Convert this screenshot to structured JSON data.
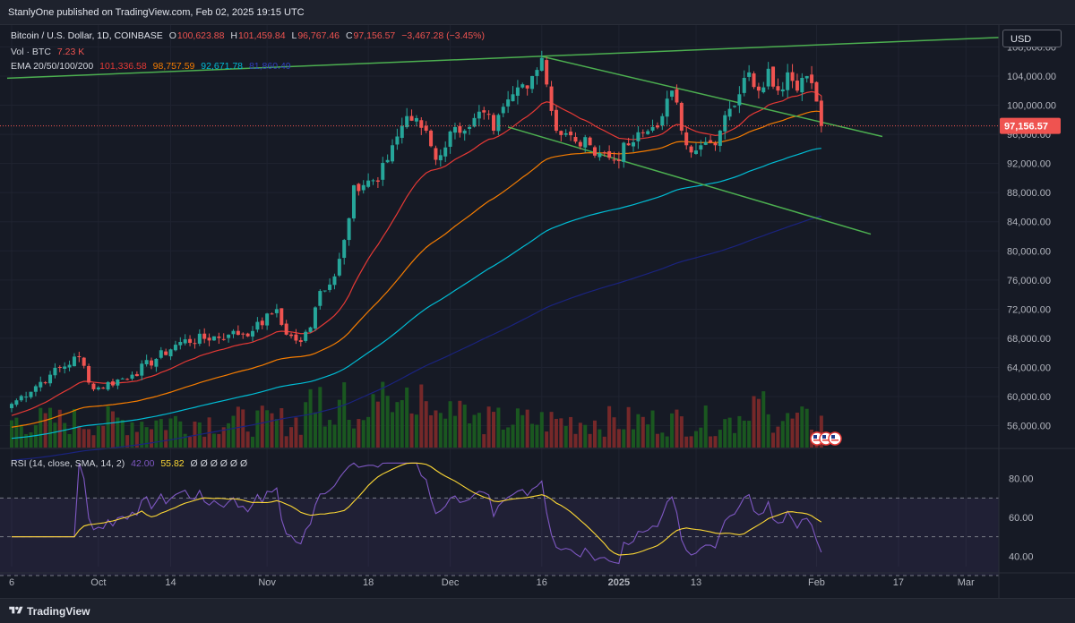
{
  "header": {
    "published": "StanlyOne published on TradingView.com, Feb 02, 2025 19:15 UTC"
  },
  "legend": {
    "symbol": "Bitcoin / U.S. Dollar, 1D, COINBASE",
    "o_label": "O",
    "o_value": "100,623.88",
    "h_label": "H",
    "h_value": "101,459.84",
    "l_label": "L",
    "l_value": "96,767.46",
    "c_label": "C",
    "c_value": "97,156.57",
    "change": "−3,467.28 (−3.45%)",
    "vol_label": "Vol · BTC",
    "vol_value": "7.23 K",
    "ema_label": "EMA 20/50/100/200",
    "ema20": "101,336.58",
    "ema50": "98,757.59",
    "ema100": "92,671.78",
    "ema200": "81,860.49",
    "rsi_label": "RSI (14, close, SMA, 14, 2)",
    "rsi_value": "42.00",
    "rsi_sma": "55.82",
    "rsi_extra": "Ø Ø Ø Ø Ø Ø"
  },
  "currency_button": "USD",
  "price_label": "97,156.57",
  "footer": {
    "brand": "TradingView"
  },
  "colors": {
    "up": "#26a69a",
    "down": "#ef5350",
    "ema20": "#e53935",
    "ema50": "#f57c00",
    "ema100": "#00bcd4",
    "ema200": "#1a237e",
    "trend": "#4caf50",
    "rsi": "#7e57c2",
    "rsi_sma": "#fdd835"
  },
  "chart_data": {
    "type": "candlestick",
    "symbol": "BTC/USD",
    "timeframe": "1D",
    "y_ticks": [
      "108,000.00",
      "104,000.00",
      "100,000.00",
      "96,000.00",
      "92,000.00",
      "88,000.00",
      "84,000.00",
      "80,000.00",
      "76,000.00",
      "72,000.00",
      "68,000.00",
      "64,000.00",
      "60,000.00",
      "56,000.00"
    ],
    "y_values": [
      108000,
      104000,
      100000,
      96000,
      92000,
      88000,
      84000,
      80000,
      76000,
      72000,
      68000,
      64000,
      60000,
      56000
    ],
    "x_ticks": [
      "6",
      "Oct",
      "14",
      "Nov",
      "18",
      "Dec",
      "16",
      "2025",
      "13",
      "Feb",
      "17",
      "Mar"
    ],
    "ylim": [
      53000,
      111000
    ],
    "last_price": 97156.57,
    "anchors": [
      {
        "d": 0,
        "p": 59000
      },
      {
        "d": 8,
        "p": 63000
      },
      {
        "d": 14,
        "p": 65500
      },
      {
        "d": 17,
        "p": 61000
      },
      {
        "d": 25,
        "p": 63000
      },
      {
        "d": 35,
        "p": 67500
      },
      {
        "d": 45,
        "p": 68500
      },
      {
        "d": 50,
        "p": 69000
      },
      {
        "d": 55,
        "p": 72000
      },
      {
        "d": 57,
        "p": 68500
      },
      {
        "d": 60,
        "p": 67500
      },
      {
        "d": 62,
        "p": 69500
      },
      {
        "d": 64,
        "p": 74500
      },
      {
        "d": 67,
        "p": 76500
      },
      {
        "d": 69,
        "p": 81500
      },
      {
        "d": 71,
        "p": 89000
      },
      {
        "d": 76,
        "p": 89500
      },
      {
        "d": 79,
        "p": 94500
      },
      {
        "d": 82,
        "p": 98500
      },
      {
        "d": 86,
        "p": 96500
      },
      {
        "d": 88,
        "p": 92500
      },
      {
        "d": 92,
        "p": 97000
      },
      {
        "d": 95,
        "p": 97000
      },
      {
        "d": 98,
        "p": 99000
      },
      {
        "d": 100,
        "p": 96500
      },
      {
        "d": 104,
        "p": 101500
      },
      {
        "d": 108,
        "p": 104000
      },
      {
        "d": 110,
        "p": 106500
      },
      {
        "d": 113,
        "p": 96500
      },
      {
        "d": 117,
        "p": 95000
      },
      {
        "d": 120,
        "p": 94500
      },
      {
        "d": 125,
        "p": 92500
      },
      {
        "d": 128,
        "p": 94500
      },
      {
        "d": 133,
        "p": 97000
      },
      {
        "d": 135,
        "p": 98500
      },
      {
        "d": 137,
        "p": 102000
      },
      {
        "d": 140,
        "p": 94500
      },
      {
        "d": 143,
        "p": 94500
      },
      {
        "d": 146,
        "p": 94500
      },
      {
        "d": 149,
        "p": 99500
      },
      {
        "d": 151,
        "p": 101500
      },
      {
        "d": 153,
        "p": 104500
      },
      {
        "d": 155,
        "p": 102000
      },
      {
        "d": 157,
        "p": 105000
      },
      {
        "d": 159,
        "p": 102000
      },
      {
        "d": 161,
        "p": 104500
      },
      {
        "d": 163,
        "p": 102000
      },
      {
        "d": 165,
        "p": 104000
      },
      {
        "d": 167,
        "p": 100500
      },
      {
        "d": 168,
        "p": 97156.57
      }
    ]
  }
}
